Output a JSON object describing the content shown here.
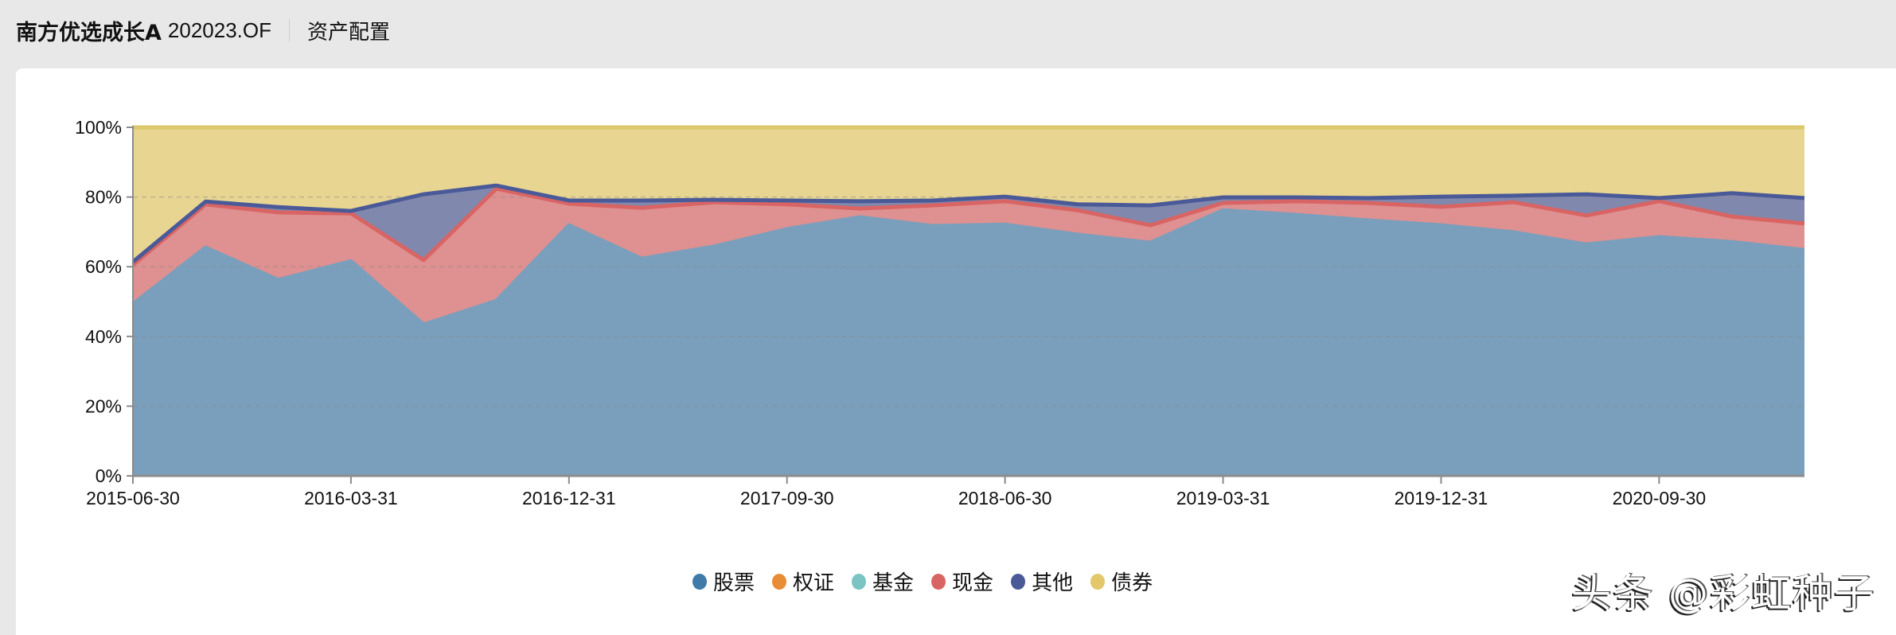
{
  "header": {
    "fund_name": "南方优选成长A",
    "fund_code": "202023.OF",
    "section": "资产配置"
  },
  "legend": [
    {
      "label": "股票",
      "color": "#3f7aa8"
    },
    {
      "label": "权证",
      "color": "#e88d36"
    },
    {
      "label": "基金",
      "color": "#7cc4c4"
    },
    {
      "label": "现金",
      "color": "#d96464"
    },
    {
      "label": "其他",
      "color": "#4a5a98"
    },
    {
      "label": "债券",
      "color": "#e3c76a"
    }
  ],
  "watermark": "头条 @彩虹种子",
  "chart_data": {
    "type": "area",
    "stacked": true,
    "title": "资产配置",
    "xlabel": "",
    "ylabel": "",
    "ylim": [
      0,
      100
    ],
    "y_ticks": [
      "0%",
      "20%",
      "40%",
      "60%",
      "80%",
      "100%"
    ],
    "x_tick_labels": [
      "2015-06-30",
      "2016-03-31",
      "2016-12-31",
      "2017-09-30",
      "2018-06-30",
      "2019-03-31",
      "2019-12-31",
      "2020-09-30"
    ],
    "grid": true,
    "legend_position": "bottom",
    "x": [
      "2015-06-30",
      "2015-09-30",
      "2015-12-31",
      "2016-03-31",
      "2016-06-30",
      "2016-09-30",
      "2016-12-31",
      "2017-03-31",
      "2017-06-30",
      "2017-09-30",
      "2017-12-31",
      "2018-03-31",
      "2018-06-30",
      "2018-09-30",
      "2018-12-31",
      "2019-03-31",
      "2019-06-30",
      "2019-09-30",
      "2019-12-31",
      "2020-03-31",
      "2020-06-30",
      "2020-09-30",
      "2020-12-31",
      "2021-03-31"
    ],
    "series": [
      {
        "name": "股票",
        "color": "#7a9fbc",
        "line": "#7a9fbc",
        "values": [
          49.3,
          65.5,
          56.2,
          61.6,
          43.4,
          50.2,
          71.9,
          62.3,
          65.8,
          70.8,
          74.2,
          71.7,
          72.1,
          69.2,
          66.9,
          76.2,
          74.9,
          73.3,
          71.9,
          69.9,
          66.4,
          68.5,
          67.1,
          64.8
        ]
      },
      {
        "name": "权证",
        "color": "#e88d36",
        "line": "#e88d36",
        "values": [
          0,
          0,
          0,
          0,
          0,
          0,
          0,
          0,
          0,
          0,
          0,
          0,
          0,
          0,
          0,
          0,
          0,
          0,
          0,
          0,
          0,
          0,
          0,
          0
        ]
      },
      {
        "name": "基金",
        "color": "#7cc4c4",
        "line": "#6cc0b8",
        "values": [
          0,
          0,
          0,
          0,
          0,
          0,
          0,
          0,
          0,
          0,
          0,
          0,
          0,
          0,
          0,
          0,
          0,
          0,
          0,
          0,
          0,
          0,
          0,
          0
        ]
      },
      {
        "name": "现金",
        "color": "#df9090",
        "line": "#d96464",
        "values": [
          11.2,
          12.4,
          19.4,
          13.7,
          18.5,
          32.2,
          6.2,
          14.6,
          12.7,
          7.1,
          2.5,
          5.9,
          6.7,
          7.0,
          5.0,
          2.1,
          3.9,
          5.0,
          5.3,
          8.6,
          8.3,
          10.3,
          7.3,
          7.6
        ]
      },
      {
        "name": "其他",
        "color": "#8088ad",
        "line": "#4a5a98",
        "values": [
          0.9,
          0.8,
          1.5,
          0.7,
          18.9,
          0.9,
          0.9,
          2.1,
          0.7,
          1.1,
          2.1,
          1.4,
          1.3,
          1.7,
          5.7,
          1.6,
          1.1,
          1.4,
          2.9,
          1.9,
          6.1,
          0.9,
          6.7,
          7.3
        ]
      },
      {
        "name": "债券",
        "color": "#e8d592",
        "line": "#dcc86a",
        "values": [
          38.6,
          21.3,
          22.9,
          24.0,
          19.2,
          16.7,
          21.0,
          21.0,
          20.8,
          21.0,
          21.2,
          21.0,
          19.9,
          22.1,
          22.4,
          20.1,
          20.1,
          20.3,
          19.9,
          19.6,
          19.2,
          20.3,
          18.9,
          20.3
        ]
      }
    ]
  }
}
